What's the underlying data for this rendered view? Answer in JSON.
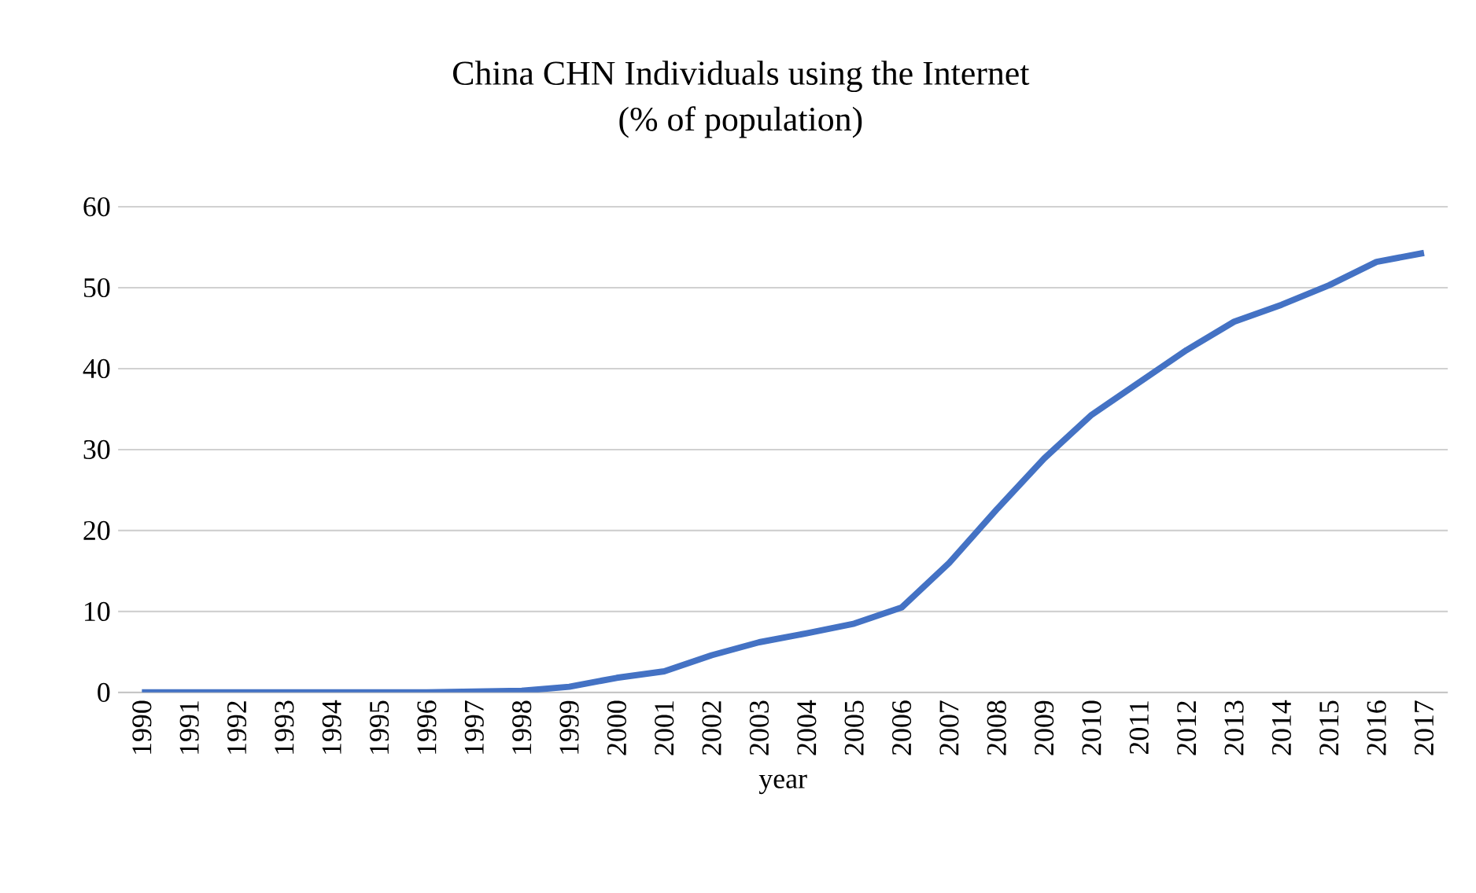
{
  "chart_data": {
    "type": "line",
    "title": "China CHN Individuals using the Internet",
    "subtitle": "(% of population)",
    "xlabel": "year",
    "categories": [
      "1990",
      "1991",
      "1992",
      "1993",
      "1994",
      "1995",
      "1996",
      "1997",
      "1998",
      "1999",
      "2000",
      "2001",
      "2002",
      "2003",
      "2004",
      "2005",
      "2006",
      "2007",
      "2008",
      "2009",
      "2010",
      "2011",
      "2012",
      "2013",
      "2014",
      "2015",
      "2016",
      "2017"
    ],
    "series": [
      {
        "color": "#4472c4",
        "values": [
          0,
          0,
          0,
          0,
          0,
          0,
          0,
          0.1,
          0.2,
          0.7,
          1.8,
          2.6,
          4.6,
          6.2,
          7.3,
          8.5,
          10.5,
          16.0,
          22.6,
          28.9,
          34.3,
          38.3,
          42.3,
          45.8,
          47.9,
          50.3,
          53.2,
          54.3
        ]
      }
    ],
    "ylim": [
      0,
      60
    ],
    "yticks": [
      0,
      10,
      20,
      30,
      40,
      50,
      60
    ],
    "grid": "y"
  }
}
